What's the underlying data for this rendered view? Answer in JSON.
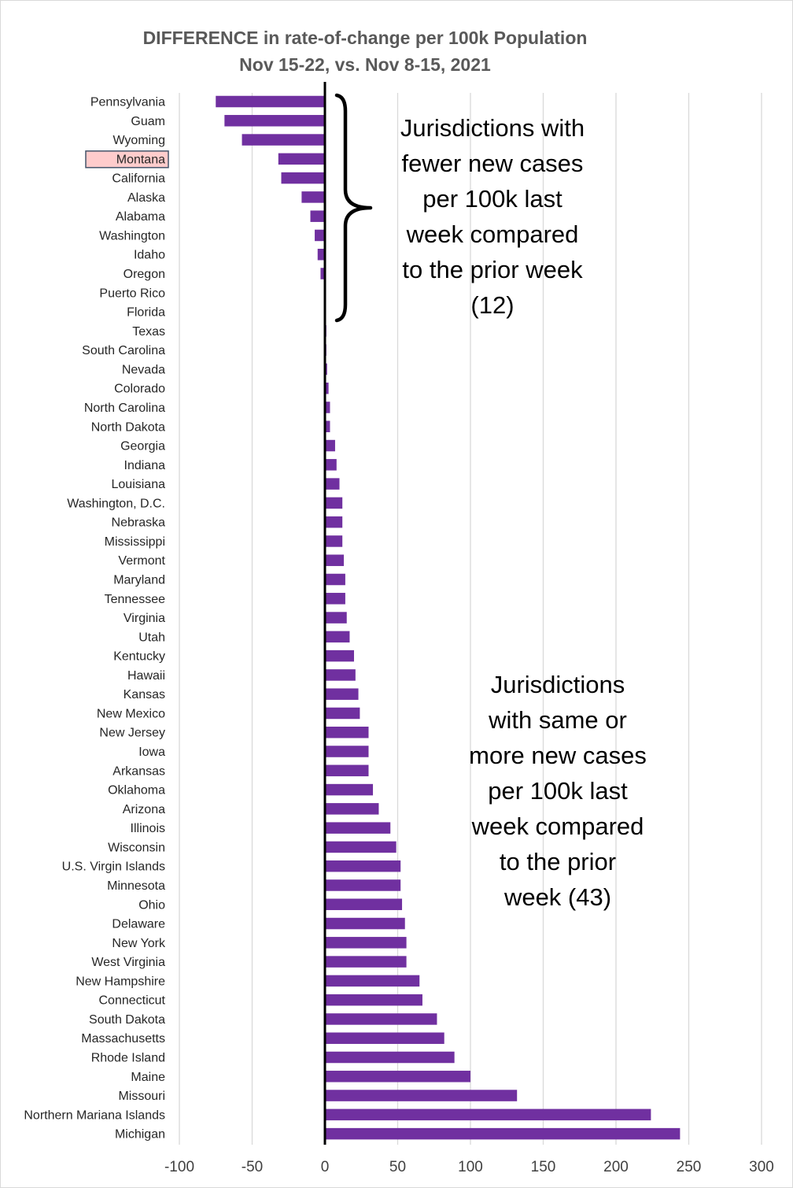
{
  "chart_data": {
    "type": "bar",
    "orientation": "horizontal",
    "title": "DIFFERENCE in rate-of-change per 100k Population",
    "subtitle": "Nov 15-22, vs. Nov 8-15, 2021",
    "xlabel": "",
    "ylabel": "",
    "xlim": [
      -100,
      300
    ],
    "x_ticks": [
      -100,
      -50,
      0,
      50,
      100,
      150,
      200,
      250,
      300
    ],
    "grid": "vertical",
    "bar_color": "#7030a0",
    "highlight_color": "#ffcccc",
    "highlight_border": "#44546a",
    "highlighted_category": "Montana",
    "zero_line_color": "#000000",
    "categories": [
      "Pennsylvania",
      "Guam",
      "Wyoming",
      "Montana",
      "California",
      "Alaska",
      "Alabama",
      "Washington",
      "Idaho",
      "Oregon",
      "Puerto Rico",
      "Florida",
      "Texas",
      "South Carolina",
      "Nevada",
      "Colorado",
      "North Carolina",
      "North Dakota",
      "Georgia",
      "Indiana",
      "Louisiana",
      "Washington, D.C.",
      "Nebraska",
      "Mississippi",
      "Vermont",
      "Maryland",
      "Tennessee",
      "Virginia",
      "Utah",
      "Kentucky",
      "Hawaii",
      "Kansas",
      "New Mexico",
      "New Jersey",
      "Iowa",
      "Arkansas",
      "Oklahoma",
      "Arizona",
      "Illinois",
      "Wisconsin",
      "U.S. Virgin Islands",
      "Minnesota",
      "Ohio",
      "Delaware",
      "New York",
      "West Virginia",
      "New Hampshire",
      "Connecticut",
      "South Dakota",
      "Massachusetts",
      "Rhode Island",
      "Maine",
      "Missouri",
      "Northern Mariana Islands",
      "Michigan"
    ],
    "values": [
      -75,
      -69,
      -57,
      -32,
      -30,
      -16,
      -10,
      -7,
      -5,
      -3,
      -0.5,
      -0.3,
      1,
      1,
      1.5,
      2.5,
      3.5,
      3.5,
      7,
      8,
      10,
      12,
      12,
      12,
      13,
      14,
      14,
      15,
      17,
      20,
      21,
      23,
      24,
      30,
      30,
      30,
      33,
      37,
      45,
      49,
      52,
      52,
      53,
      55,
      56,
      56,
      65,
      67,
      77,
      82,
      89,
      100,
      132,
      224,
      244
    ],
    "annotations": [
      {
        "id": "decrease",
        "lines": [
          "Jurisdictions with",
          "fewer new cases",
          "per 100k last",
          "week compared",
          "to the prior week",
          "(12)"
        ]
      },
      {
        "id": "increase",
        "lines": [
          "Jurisdictions",
          "with same or",
          "more new cases",
          "per 100k last",
          "week compared",
          "to the prior",
          "week (43)"
        ]
      }
    ]
  }
}
